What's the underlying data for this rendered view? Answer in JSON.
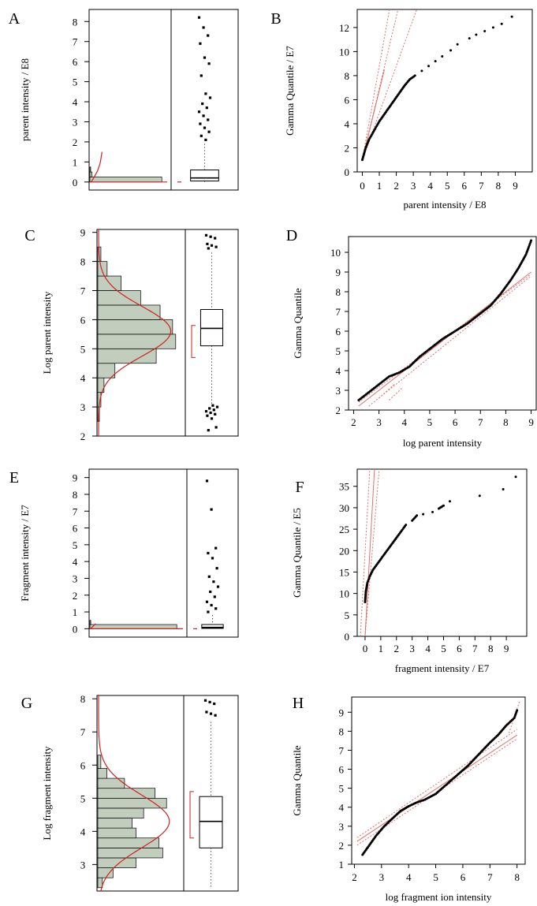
{
  "chart_data": [
    {
      "panel": "A",
      "type": "histogram-boxplot",
      "ylabel": "parent intensity / E8",
      "ylim": [
        -0.4,
        8.6
      ],
      "yticks": [
        "0",
        "1",
        "2",
        "3",
        "4",
        "5",
        "6",
        "7",
        "8"
      ],
      "hist_bins": [
        {
          "lo": 0.0,
          "hi": 0.25,
          "count": 1.0
        },
        {
          "lo": 0.25,
          "hi": 0.5,
          "count": 0.03
        },
        {
          "lo": 0.5,
          "hi": 0.75,
          "count": 0.01
        }
      ],
      "density_curve": [
        [
          0.5,
          1.5
        ],
        [
          0.42,
          0.95
        ],
        [
          0.3,
          0.55
        ],
        [
          0.18,
          0.3
        ],
        [
          0.09,
          0.12
        ],
        [
          0.04,
          0.03
        ],
        [
          0.0,
          0.0
        ]
      ],
      "box": {
        "whisker_low": 0.0,
        "q1": 0.05,
        "median": 0.2,
        "q3": 0.6,
        "whisker_high": 1.9
      },
      "outliers": [
        8.2,
        7.7,
        7.3,
        6.9,
        6.2,
        5.9,
        5.3,
        4.4,
        4.2,
        3.9,
        3.7,
        3.5,
        3.3,
        3.1,
        2.9,
        2.7,
        2.5,
        2.3,
        2.1
      ]
    },
    {
      "panel": "B",
      "type": "qq",
      "xlabel": "parent intensity / E8",
      "ylabel": "Gamma Quantile / E7",
      "xlim": [
        -0.3,
        10
      ],
      "ylim": [
        0,
        13.5
      ],
      "xticks": [
        "0",
        "1",
        "2",
        "3",
        "4",
        "5",
        "6",
        "7",
        "8",
        "9"
      ],
      "yticks": [
        "0",
        "2",
        "4",
        "6",
        "8",
        "10",
        "12"
      ],
      "points": [
        [
          0.0,
          1.0
        ],
        [
          0.1,
          1.5
        ],
        [
          0.2,
          2.0
        ],
        [
          0.4,
          2.7
        ],
        [
          0.6,
          3.2
        ],
        [
          0.8,
          3.7
        ],
        [
          1.0,
          4.2
        ],
        [
          1.3,
          4.8
        ],
        [
          1.6,
          5.4
        ],
        [
          1.9,
          6.0
        ],
        [
          2.2,
          6.6
        ],
        [
          2.5,
          7.2
        ],
        [
          2.8,
          7.7
        ],
        [
          3.1,
          8.0
        ],
        [
          3.5,
          8.4
        ],
        [
          3.9,
          8.8
        ],
        [
          4.3,
          9.2
        ],
        [
          4.7,
          9.6
        ],
        [
          5.2,
          10.1
        ],
        [
          5.6,
          10.6
        ],
        [
          6.3,
          11.1
        ],
        [
          6.7,
          11.4
        ],
        [
          7.2,
          11.7
        ],
        [
          7.7,
          12.0
        ],
        [
          8.2,
          12.3
        ],
        [
          8.8,
          12.9
        ]
      ],
      "ref_lines": [
        [
          [
            0,
            1.0
          ],
          [
            1.3,
            8.5
          ]
        ],
        [
          [
            0,
            1.0
          ],
          [
            2.1,
            13.5
          ]
        ],
        [
          [
            0,
            1.0
          ],
          [
            3.2,
            13.5
          ]
        ],
        [
          [
            0,
            1.0
          ],
          [
            1.6,
            13.5
          ]
        ]
      ]
    },
    {
      "panel": "C",
      "type": "histogram-boxplot",
      "ylabel": "Log parent intensity",
      "ylim": [
        2.0,
        9.1
      ],
      "yticks": [
        "2",
        "3",
        "4",
        "5",
        "6",
        "7",
        "8",
        "9"
      ],
      "hist_bins": [
        {
          "lo": 2.5,
          "hi": 3.0,
          "count": 0.02
        },
        {
          "lo": 3.0,
          "hi": 3.5,
          "count": 0.04
        },
        {
          "lo": 3.5,
          "hi": 4.0,
          "count": 0.08
        },
        {
          "lo": 4.0,
          "hi": 4.5,
          "count": 0.22
        },
        {
          "lo": 4.5,
          "hi": 5.0,
          "count": 0.75
        },
        {
          "lo": 5.0,
          "hi": 5.5,
          "count": 1.0
        },
        {
          "lo": 5.5,
          "hi": 6.0,
          "count": 0.96
        },
        {
          "lo": 6.0,
          "hi": 6.5,
          "count": 0.8
        },
        {
          "lo": 6.5,
          "hi": 7.0,
          "count": 0.55
        },
        {
          "lo": 7.0,
          "hi": 7.5,
          "count": 0.3
        },
        {
          "lo": 7.5,
          "hi": 8.0,
          "count": 0.12
        },
        {
          "lo": 8.0,
          "hi": 8.5,
          "count": 0.04
        }
      ],
      "density_mean": 5.6,
      "density_sd": 0.85,
      "bracket": [
        4.7,
        5.8
      ],
      "box": {
        "whisker_low": 3.1,
        "q1": 5.1,
        "median": 5.7,
        "q3": 6.35,
        "whisker_high": 8.3
      },
      "outliers": [
        8.9,
        8.85,
        8.8,
        8.6,
        8.55,
        8.5,
        8.45,
        3.05,
        3.0,
        2.95,
        2.9,
        2.85,
        2.8,
        2.75,
        2.7,
        2.6,
        2.3,
        2.2
      ]
    },
    {
      "panel": "D",
      "type": "qq",
      "xlabel": "log parent intensity",
      "ylabel": "Gamma Quantile",
      "xlim": [
        1.8,
        9.2
      ],
      "ylim": [
        2.0,
        10.8
      ],
      "xticks": [
        "2",
        "3",
        "4",
        "5",
        "6",
        "7",
        "8",
        "9"
      ],
      "yticks": [
        "2",
        "3",
        "4",
        "5",
        "6",
        "7",
        "8",
        "9",
        "10"
      ],
      "points": [
        [
          2.2,
          2.5
        ],
        [
          2.5,
          2.8
        ],
        [
          2.8,
          3.1
        ],
        [
          3.1,
          3.4
        ],
        [
          3.4,
          3.7
        ],
        [
          3.8,
          3.9
        ],
        [
          4.2,
          4.2
        ],
        [
          4.6,
          4.7
        ],
        [
          5.0,
          5.1
        ],
        [
          5.5,
          5.6
        ],
        [
          6.0,
          6.0
        ],
        [
          6.5,
          6.4
        ],
        [
          7.0,
          6.9
        ],
        [
          7.4,
          7.3
        ],
        [
          7.8,
          7.9
        ],
        [
          8.2,
          8.6
        ],
        [
          8.5,
          9.2
        ],
        [
          8.8,
          9.9
        ],
        [
          9.0,
          10.6
        ]
      ],
      "ref_lines": [
        [
          [
            2.2,
            2.2
          ],
          [
            9.0,
            9.0
          ]
        ],
        [
          [
            2.6,
            2.2
          ],
          [
            9.0,
            8.8
          ]
        ],
        [
          [
            2.2,
            2.4
          ],
          [
            9.0,
            8.9
          ]
        ],
        [
          [
            3.0,
            2.6
          ],
          [
            3.6,
            3.3
          ]
        ],
        [
          [
            3.4,
            2.5
          ],
          [
            3.9,
            3.1
          ]
        ]
      ]
    },
    {
      "panel": "E",
      "type": "histogram-boxplot",
      "ylabel": "Fragment intensity / E7",
      "ylim": [
        -0.5,
        9.5
      ],
      "yticks": [
        "0",
        "1",
        "2",
        "3",
        "4",
        "5",
        "6",
        "7",
        "8",
        "9"
      ],
      "hist_bins": [
        {
          "lo": 0.0,
          "hi": 0.25,
          "count": 1.0
        },
        {
          "lo": 0.25,
          "hi": 0.5,
          "count": 0.01
        }
      ],
      "density_curve": [
        [
          0.18,
          0.3
        ],
        [
          0.12,
          0.2
        ],
        [
          0.06,
          0.1
        ],
        [
          0.02,
          0.04
        ],
        [
          0.0,
          0.0
        ]
      ],
      "box": {
        "whisker_low": 0.0,
        "q1": 0.02,
        "median": 0.08,
        "q3": 0.25,
        "whisker_high": 0.8
      },
      "outliers": [
        8.8,
        7.1,
        4.8,
        4.5,
        4.2,
        3.6,
        3.1,
        2.8,
        2.5,
        2.2,
        1.9,
        1.6,
        1.4,
        1.2,
        1.0
      ]
    },
    {
      "panel": "F",
      "type": "qq",
      "xlabel": "fragment intensity / E7",
      "ylabel": "Gamma Quantile / E5",
      "xlim": [
        -0.5,
        10.3
      ],
      "ylim": [
        0,
        39
      ],
      "xticks": [
        "0",
        "1",
        "2",
        "3",
        "4",
        "5",
        "6",
        "7",
        "8",
        "9"
      ],
      "yticks": [
        "0",
        "5",
        "10",
        "15",
        "20",
        "25",
        "30",
        "35"
      ],
      "points": [
        [
          0.0,
          8.0
        ],
        [
          0.05,
          10.5
        ],
        [
          0.15,
          12.5
        ],
        [
          0.3,
          14.0
        ],
        [
          0.5,
          15.5
        ],
        [
          0.8,
          17.0
        ],
        [
          1.1,
          18.5
        ],
        [
          1.4,
          20.0
        ],
        [
          1.7,
          21.5
        ],
        [
          2.0,
          23.0
        ],
        [
          2.3,
          24.5
        ],
        [
          2.6,
          26.0
        ],
        [
          3.0,
          27.0
        ],
        [
          3.3,
          28.2
        ],
        [
          3.7,
          28.5
        ],
        [
          4.3,
          29.0
        ],
        [
          4.7,
          29.8
        ],
        [
          5.0,
          30.5
        ],
        [
          5.4,
          31.5
        ],
        [
          7.3,
          32.8
        ],
        [
          8.8,
          34.3
        ],
        [
          9.6,
          37.2
        ]
      ],
      "ref_lines": [
        [
          [
            0,
            0
          ],
          [
            0.6,
            39
          ]
        ],
        [
          [
            0,
            0
          ],
          [
            0.9,
            39
          ]
        ],
        [
          [
            -0.3,
            0
          ],
          [
            0.3,
            39
          ]
        ]
      ]
    },
    {
      "panel": "G",
      "type": "histogram-boxplot",
      "ylabel": "Log fragment intensity",
      "ylim": [
        2.2,
        8.1
      ],
      "yticks": [
        "3",
        "4",
        "5",
        "6",
        "7",
        "8"
      ],
      "hist_bins": [
        {
          "lo": 2.3,
          "hi": 2.6,
          "count": 0.06
        },
        {
          "lo": 2.6,
          "hi": 2.9,
          "count": 0.2
        },
        {
          "lo": 2.9,
          "hi": 3.2,
          "count": 0.5
        },
        {
          "lo": 3.2,
          "hi": 3.5,
          "count": 0.85
        },
        {
          "lo": 3.5,
          "hi": 3.8,
          "count": 0.8
        },
        {
          "lo": 3.8,
          "hi": 4.1,
          "count": 0.5
        },
        {
          "lo": 4.1,
          "hi": 4.4,
          "count": 0.45
        },
        {
          "lo": 4.4,
          "hi": 4.7,
          "count": 0.6
        },
        {
          "lo": 4.7,
          "hi": 5.0,
          "count": 0.9
        },
        {
          "lo": 5.0,
          "hi": 5.3,
          "count": 0.75
        },
        {
          "lo": 5.3,
          "hi": 5.6,
          "count": 0.35
        },
        {
          "lo": 5.6,
          "hi": 5.9,
          "count": 0.12
        },
        {
          "lo": 5.9,
          "hi": 6.3,
          "count": 0.04
        }
      ],
      "density_mean": 4.3,
      "density_sd": 0.8,
      "bracket": [
        3.8,
        5.2
      ],
      "box": {
        "whisker_low": 2.3,
        "q1": 3.5,
        "median": 4.3,
        "q3": 5.05,
        "whisker_high": 7.3
      },
      "outliers": [
        7.95,
        7.9,
        7.85,
        7.6,
        7.55,
        7.5
      ]
    },
    {
      "panel": "H",
      "type": "qq",
      "xlabel": "log fragment ion intensity",
      "ylabel": "Gamma Quantile",
      "xlim": [
        1.9,
        8.3
      ],
      "ylim": [
        1.0,
        9.8
      ],
      "xticks": [
        "2",
        "3",
        "4",
        "5",
        "6",
        "7",
        "8"
      ],
      "yticks": [
        "1",
        "2",
        "3",
        "4",
        "5",
        "6",
        "7",
        "8",
        "9"
      ],
      "points": [
        [
          2.3,
          1.5
        ],
        [
          2.5,
          1.9
        ],
        [
          2.8,
          2.5
        ],
        [
          3.1,
          3.0
        ],
        [
          3.4,
          3.4
        ],
        [
          3.7,
          3.8
        ],
        [
          4.0,
          4.05
        ],
        [
          4.3,
          4.25
        ],
        [
          4.6,
          4.4
        ],
        [
          5.0,
          4.7
        ],
        [
          5.4,
          5.2
        ],
        [
          5.8,
          5.7
        ],
        [
          6.2,
          6.2
        ],
        [
          6.6,
          6.8
        ],
        [
          7.0,
          7.4
        ],
        [
          7.3,
          7.8
        ],
        [
          7.6,
          8.3
        ],
        [
          7.9,
          8.7
        ],
        [
          8.0,
          9.1
        ]
      ],
      "ref_lines": [
        [
          [
            2.1,
            2.2
          ],
          [
            8.0,
            7.8
          ]
        ],
        [
          [
            2.1,
            2.4
          ],
          [
            8.0,
            8.1
          ]
        ],
        [
          [
            2.1,
            2.0
          ],
          [
            8.0,
            7.6
          ]
        ],
        [
          [
            7.7,
            7.9
          ],
          [
            8.1,
            9.6
          ]
        ]
      ]
    }
  ],
  "colors": {
    "bar_fill": "#c2cebd",
    "curve": "#d12020",
    "ref_line": "#e07070",
    "axis": "#000000"
  }
}
